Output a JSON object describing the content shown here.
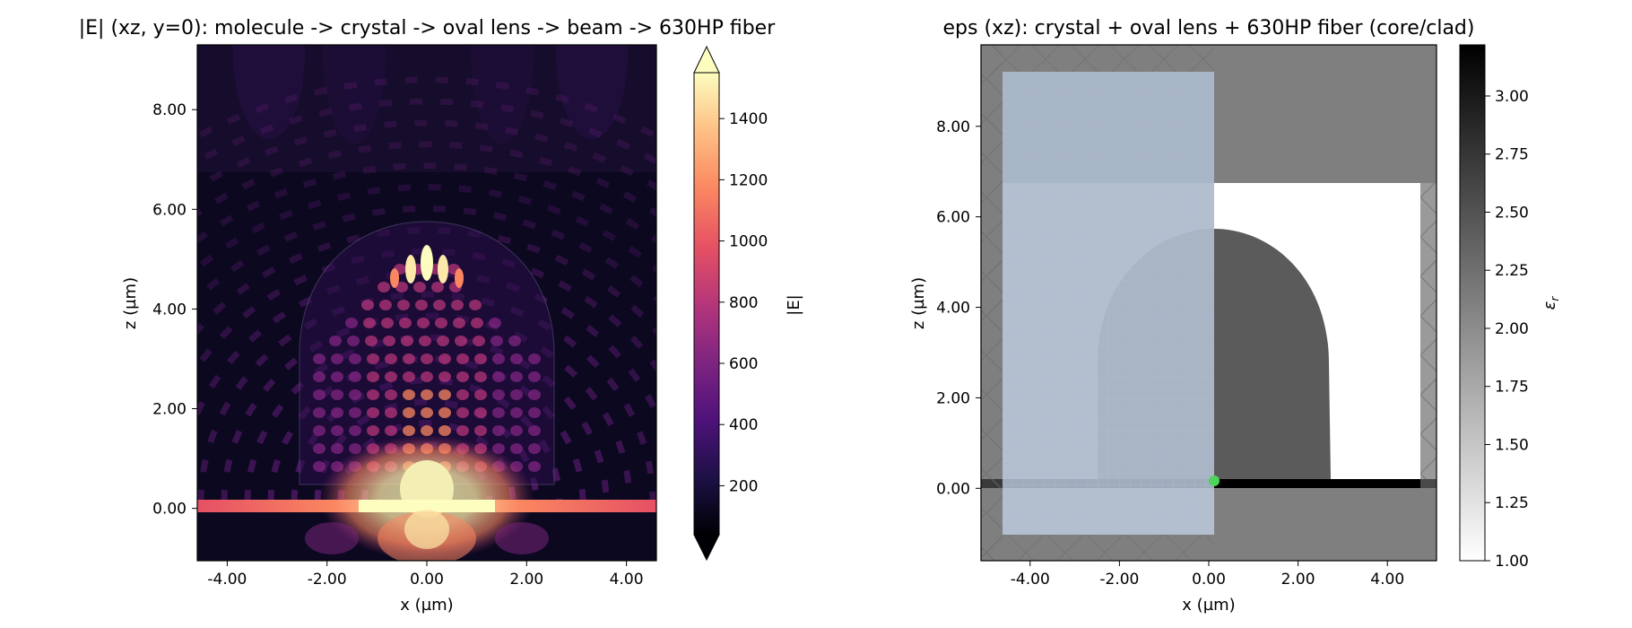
{
  "figure": {
    "left_panel": {
      "title": "|E| (xz, y=0): molecule -> crystal -> oval lens -> beam -> 630HP fiber",
      "xlabel": "x (µm)",
      "ylabel": "z (µm)",
      "xticks": [
        "-4.00",
        "-2.00",
        "0.00",
        "2.00",
        "4.00"
      ],
      "yticks": [
        "0.00",
        "2.00",
        "4.00",
        "6.00",
        "8.00"
      ],
      "colorbar": {
        "label": "|E|",
        "ticks": [
          "200",
          "400",
          "600",
          "800",
          "1000",
          "1200",
          "1400"
        ],
        "colormap": "magma",
        "extend": "both"
      }
    },
    "right_panel": {
      "title": "eps (xz): crystal + oval lens + 630HP fiber (core/clad)",
      "xlabel": "x (µm)",
      "ylabel": "z (µm)",
      "xticks": [
        "-4.00",
        "-2.00",
        "0.00",
        "2.00",
        "4.00"
      ],
      "yticks": [
        "0.00",
        "2.00",
        "4.00",
        "6.00",
        "8.00"
      ],
      "colorbar": {
        "label": "ε_r",
        "ticks": [
          "1.00",
          "1.25",
          "1.50",
          "1.75",
          "2.00",
          "2.25",
          "2.50",
          "2.75",
          "3.00"
        ],
        "colormap": "gray_r"
      }
    }
  },
  "chart_data": [
    {
      "type": "heatmap",
      "title": "|E| (xz, y=0): molecule -> crystal -> oval lens -> beam -> 630HP fiber",
      "xlabel": "x (µm)",
      "ylabel": "z (µm)",
      "xlim": [
        -4.6,
        4.6
      ],
      "ylim": [
        -1.05,
        9.3
      ],
      "quantity": "|E|",
      "color_range": [
        40,
        1550
      ],
      "colormap": "magma",
      "structures": {
        "crystal_top_z": 6.8,
        "lens": {
          "x_half_width": 2.6,
          "base_z": 0.0,
          "straight_top_z": 2.8,
          "apex_z": 5.8
        },
        "fiber_core_z": [
          -0.05,
          0.25
        ]
      },
      "features": [
        {
          "name": "molecule hotspot",
          "x": 0.0,
          "z": 0.3,
          "value": 1550
        },
        {
          "name": "lens focus lobes",
          "x": 0.0,
          "z": 4.8,
          "value": 1550
        }
      ]
    },
    {
      "type": "heatmap",
      "title": "eps (xz): crystal + oval lens + 630HP fiber (core/clad)",
      "xlabel": "x (µm)",
      "ylabel": "z (µm)",
      "xlim": [
        -5.1,
        5.1
      ],
      "ylim": [
        -1.6,
        9.8
      ],
      "quantity": "ε_r",
      "color_range": [
        1.0,
        3.22
      ],
      "colormap": "gray_r",
      "regions": [
        {
          "name": "crystal",
          "eps": 2.0,
          "z": [
            6.8,
            9.8
          ]
        },
        {
          "name": "oval lens",
          "eps": 2.55,
          "x": [
            -2.6,
            2.6
          ],
          "z": [
            0.0,
            5.8
          ]
        },
        {
          "name": "fiber core",
          "eps": 3.2,
          "x": [
            0.0,
            4.6
          ],
          "z": [
            -0.2,
            0.0
          ]
        },
        {
          "name": "substrate",
          "eps": 2.0,
          "z": [
            -1.6,
            -0.2
          ]
        },
        {
          "name": "background",
          "eps": 1.0
        }
      ],
      "source": {
        "x": 0.0,
        "z": 0.2
      }
    }
  ]
}
